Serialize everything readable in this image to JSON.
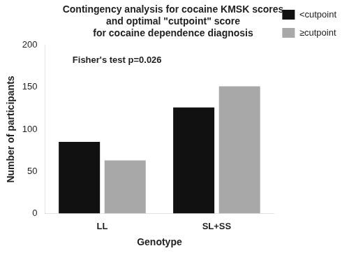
{
  "chart_data": {
    "type": "bar",
    "title": "Contingency analysis for cocaine KMSK scores\nand optimal \"cutpoint\" score\nfor cocaine dependence diagnosis",
    "categories": [
      "LL",
      "SL+SS"
    ],
    "series": [
      {
        "name": "<cutpoint",
        "color": "#111111",
        "values": [
          85,
          126
        ]
      },
      {
        "name": "≥cutpoint",
        "color": "#a8a8a8",
        "values": [
          63,
          151
        ]
      }
    ],
    "xlabel": "Genotype",
    "ylabel": "Number of participants",
    "ylim": [
      0,
      200
    ],
    "yticks": [
      0,
      50,
      100,
      150,
      200
    ],
    "annotation": "Fisher's test p=0.026",
    "grid": false,
    "legend": "right"
  }
}
